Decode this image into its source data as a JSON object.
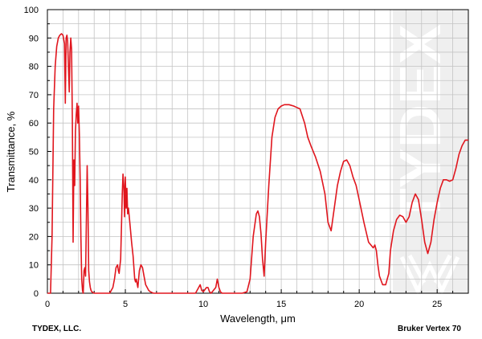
{
  "chart_data": {
    "type": "line",
    "title": "",
    "xlabel": "Wavelength, μm",
    "ylabel": "Transmittance, %",
    "xlim": [
      0,
      27
    ],
    "ylim": [
      0,
      100
    ],
    "x_ticks": [
      0,
      5,
      10,
      15,
      20,
      25
    ],
    "y_ticks": [
      0,
      10,
      20,
      30,
      40,
      50,
      60,
      70,
      80,
      90,
      100
    ],
    "grid": true,
    "line_color": "#e0161e",
    "series": [
      {
        "x": [
          0,
          0.2,
          0.3,
          0.4,
          0.5,
          0.6,
          0.7,
          0.8,
          0.9,
          1.0,
          1.1,
          1.15,
          1.2,
          1.25,
          1.3,
          1.4,
          1.45,
          1.5,
          1.55,
          1.6,
          1.65,
          1.7,
          1.75,
          1.8,
          1.85,
          1.9,
          1.95,
          2.0,
          2.05,
          2.1,
          2.15,
          2.2,
          2.25,
          2.3,
          2.35,
          2.4,
          2.45,
          2.5,
          2.55,
          2.6,
          2.65,
          2.7,
          2.75,
          2.8,
          2.85,
          2.9,
          3.0,
          3.5,
          4.0,
          4.2,
          4.3,
          4.4,
          4.5,
          4.55,
          4.6,
          4.7,
          4.8,
          4.85,
          4.9,
          4.95,
          5.0,
          5.05,
          5.1,
          5.15,
          5.2,
          5.3,
          5.4,
          5.5,
          5.6,
          5.65,
          5.7,
          5.8,
          5.9,
          6.0,
          6.1,
          6.2,
          6.3,
          6.4,
          6.5,
          6.6,
          6.8,
          7.0,
          8.0,
          9.5,
          9.7,
          9.8,
          9.9,
          10.0,
          10.2,
          10.3,
          10.4,
          10.5,
          10.8,
          10.9,
          11.0,
          11.1,
          11.2,
          11.5,
          12.0,
          12.5,
          12.8,
          13.0,
          13.2,
          13.4,
          13.5,
          13.6,
          13.7,
          13.8,
          13.9,
          14.0,
          14.2,
          14.4,
          14.6,
          14.8,
          15.0,
          15.2,
          15.5,
          15.8,
          16.0,
          16.2,
          16.5,
          16.7,
          16.9,
          17.2,
          17.5,
          17.8,
          18.0,
          18.2,
          18.4,
          18.6,
          18.8,
          19.0,
          19.2,
          19.4,
          19.6,
          19.8,
          20.0,
          20.3,
          20.6,
          20.9,
          21.0,
          21.1,
          21.2,
          21.3,
          21.5,
          21.7,
          21.9,
          22.0,
          22.2,
          22.4,
          22.6,
          22.8,
          23.0,
          23.2,
          23.4,
          23.6,
          23.8,
          24.0,
          24.2,
          24.4,
          24.6,
          24.8,
          25.0,
          25.2,
          25.4,
          25.6,
          25.8,
          26.0,
          26.2,
          26.4,
          26.6,
          26.8,
          27.0
        ],
        "values": [
          0,
          0,
          20,
          65,
          80,
          87,
          90,
          91,
          91.5,
          91,
          88,
          67,
          90,
          91,
          89,
          71,
          85,
          90,
          86,
          60,
          18,
          47,
          38,
          57,
          63,
          67,
          60,
          66,
          56,
          40,
          20,
          5,
          1,
          0,
          8,
          9,
          6,
          25,
          45,
          30,
          8,
          4,
          2,
          1,
          0.5,
          0.3,
          0,
          0,
          0,
          2,
          5,
          9,
          10,
          8,
          7,
          12,
          35,
          42,
          38,
          27,
          41,
          30,
          37,
          28,
          30,
          24,
          18,
          13,
          5,
          4,
          5,
          2,
          8,
          10,
          9,
          6,
          3,
          2,
          1,
          0.5,
          0,
          0,
          0,
          0,
          2,
          3,
          1,
          0.5,
          2,
          2,
          0.5,
          0,
          2,
          5,
          2,
          0.5,
          0,
          0,
          0,
          0,
          0.5,
          5,
          20,
          28,
          29,
          27,
          21,
          12,
          6,
          18,
          38,
          55,
          62,
          65,
          66,
          66.5,
          66.5,
          66,
          65.5,
          65,
          60,
          55,
          52,
          48,
          43,
          35,
          25,
          22,
          30,
          38,
          43,
          46.5,
          47,
          45,
          41,
          38,
          33,
          25,
          18,
          16,
          17,
          15,
          10,
          6,
          3,
          3,
          7,
          15,
          22,
          26,
          27.5,
          27,
          25,
          27,
          32,
          35,
          33,
          26,
          18,
          14,
          18,
          26,
          32,
          37,
          40,
          40,
          39.5,
          40,
          44,
          49,
          52,
          54,
          54
        ]
      }
    ]
  },
  "watermark": {
    "brand": "TYDEX"
  },
  "footer": {
    "left": "TYDEX, LLC.",
    "right": "Bruker Vertex 70"
  }
}
